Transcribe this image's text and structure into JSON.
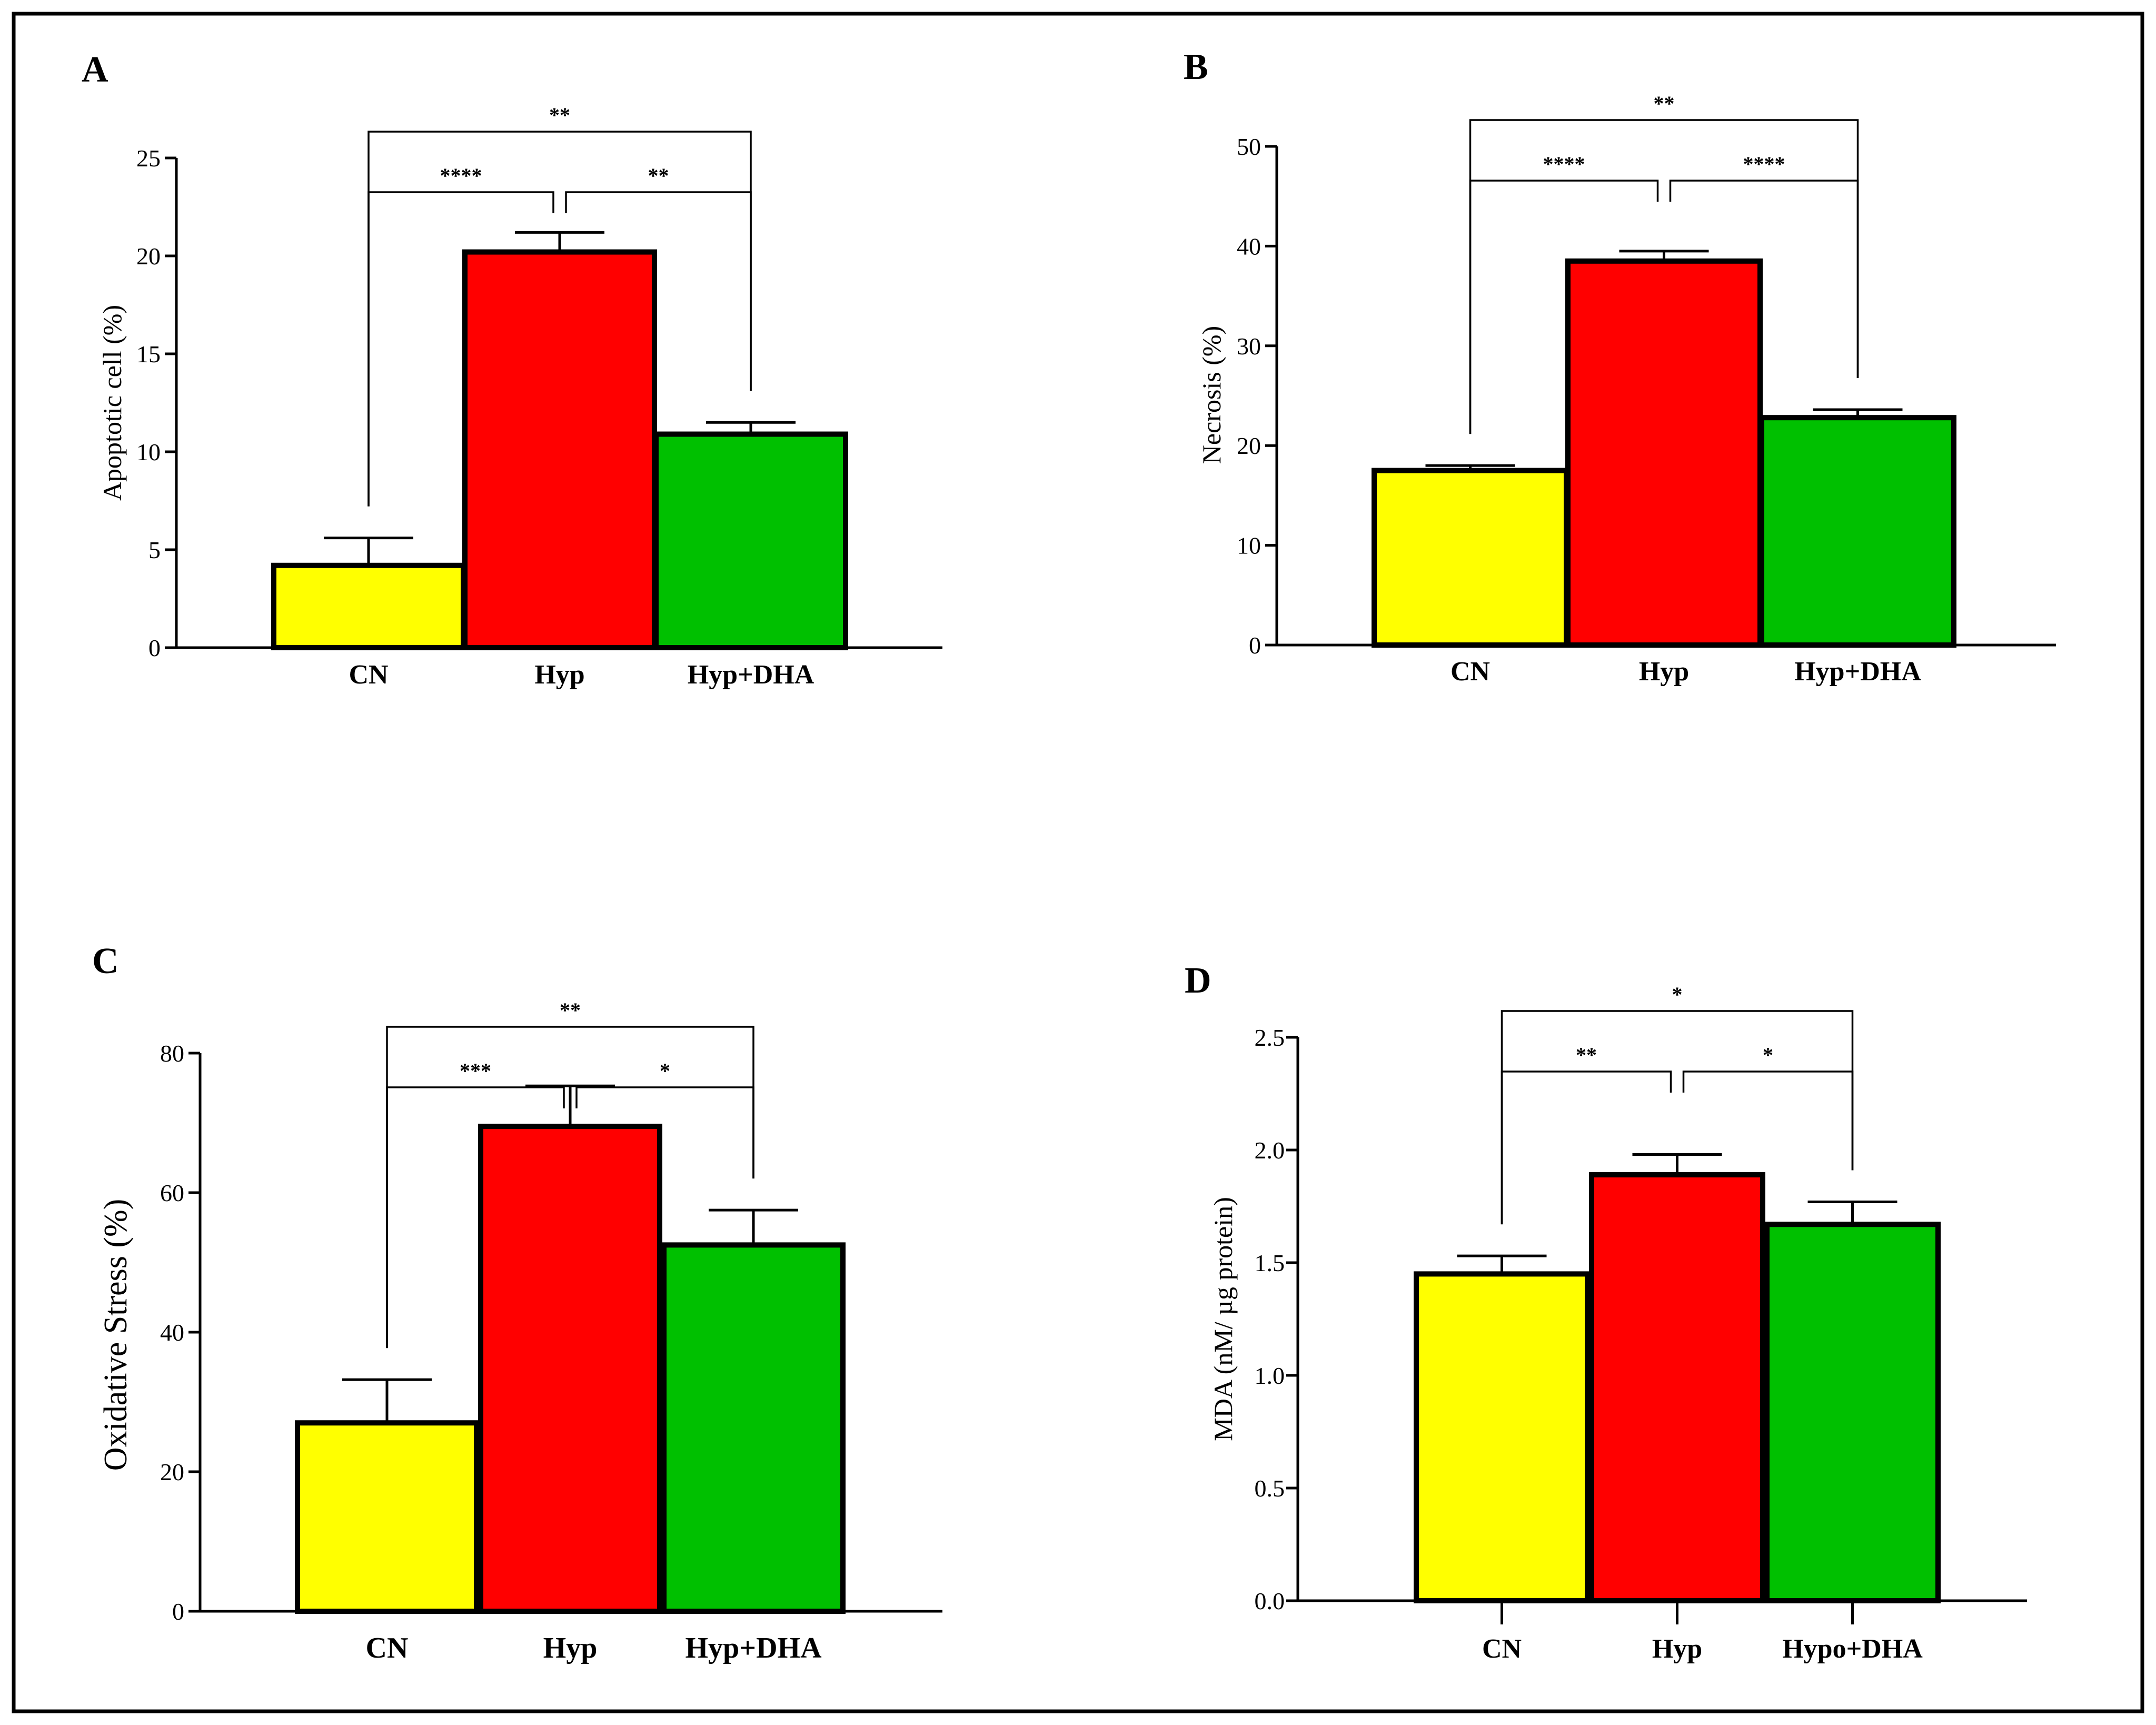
{
  "figure": {
    "border_color": "#000000"
  },
  "chart_data": [
    {
      "panel": "A",
      "type": "bar",
      "categories": [
        "CN",
        "Hyp",
        "Hyp+DHA"
      ],
      "values": [
        4.2,
        20.2,
        10.9
      ],
      "errors": [
        1.4,
        1.0,
        0.6
      ],
      "colors": [
        "#ffff00",
        "#ff0000",
        "#00c000"
      ],
      "title": "",
      "xlabel": "",
      "ylabel": "Apoptotic cell (%)",
      "ylim": [
        0,
        25
      ],
      "yticks": [
        0,
        5,
        10,
        15,
        20,
        25
      ],
      "ytick_labels": [
        "0",
        "5",
        "10",
        "15",
        "20",
        "25"
      ],
      "x_ticks": false,
      "grid": false,
      "significance": [
        {
          "from": 0,
          "to": 1,
          "label": "****",
          "level": 0
        },
        {
          "from": 1,
          "to": 2,
          "label": "**",
          "level": 0
        },
        {
          "from": 0,
          "to": 2,
          "label": "**",
          "level": 1
        }
      ]
    },
    {
      "panel": "B",
      "type": "bar",
      "categories": [
        "CN",
        "Hyp",
        "Hyp+DHA"
      ],
      "values": [
        17.5,
        38.5,
        22.8
      ],
      "errors": [
        0.5,
        1.0,
        0.8
      ],
      "colors": [
        "#ffff00",
        "#ff0000",
        "#00c000"
      ],
      "title": "",
      "xlabel": "",
      "ylabel": "Necrosis  (%)",
      "ylim": [
        0,
        50
      ],
      "yticks": [
        0,
        10,
        20,
        30,
        40,
        50
      ],
      "ytick_labels": [
        "0",
        "10",
        "20",
        "30",
        "40",
        "50"
      ],
      "x_ticks": false,
      "grid": false,
      "significance": [
        {
          "from": 0,
          "to": 1,
          "label": "****",
          "level": 0
        },
        {
          "from": 1,
          "to": 2,
          "label": "****",
          "level": 0
        },
        {
          "from": 0,
          "to": 2,
          "label": "**",
          "level": 1
        }
      ]
    },
    {
      "panel": "C",
      "type": "bar",
      "categories": [
        "CN",
        "Hyp",
        "Hyp+DHA"
      ],
      "values": [
        27,
        69.5,
        52.5
      ],
      "errors": [
        6.2,
        5.8,
        5.0
      ],
      "colors": [
        "#ffff00",
        "#ff0000",
        "#00c000"
      ],
      "title": "",
      "xlabel": "",
      "ylabel": "Oxidative Stress (%)",
      "ylim": [
        0,
        80
      ],
      "yticks": [
        0,
        20,
        40,
        60,
        80
      ],
      "ytick_labels": [
        "0",
        "20",
        "40",
        "60",
        "80"
      ],
      "x_ticks": false,
      "grid": false,
      "significance": [
        {
          "from": 0,
          "to": 1,
          "label": "***",
          "level": 0
        },
        {
          "from": 1,
          "to": 2,
          "label": "*",
          "level": 0
        },
        {
          "from": 0,
          "to": 2,
          "label": "**",
          "level": 1
        }
      ]
    },
    {
      "panel": "D",
      "type": "bar",
      "categories": [
        "CN",
        "Hyp",
        "Hypo+DHA"
      ],
      "values": [
        1.45,
        1.89,
        1.67
      ],
      "errors": [
        0.08,
        0.09,
        0.1
      ],
      "colors": [
        "#ffff00",
        "#ff0000",
        "#00c000"
      ],
      "title": "",
      "xlabel": "",
      "ylabel": "MDA (nM/ µg protein)",
      "ylim": [
        0,
        2.5
      ],
      "yticks": [
        0,
        0.5,
        1,
        1.5,
        2,
        2.5
      ],
      "ytick_labels": [
        "0.0",
        "0.5",
        "1.0",
        "1.5",
        "2.0",
        "2.5"
      ],
      "x_ticks": true,
      "grid": false,
      "significance": [
        {
          "from": 0,
          "to": 1,
          "label": "**",
          "level": 0
        },
        {
          "from": 1,
          "to": 2,
          "label": "*",
          "level": 0
        },
        {
          "from": 0,
          "to": 2,
          "label": "*",
          "level": 1
        }
      ]
    }
  ]
}
